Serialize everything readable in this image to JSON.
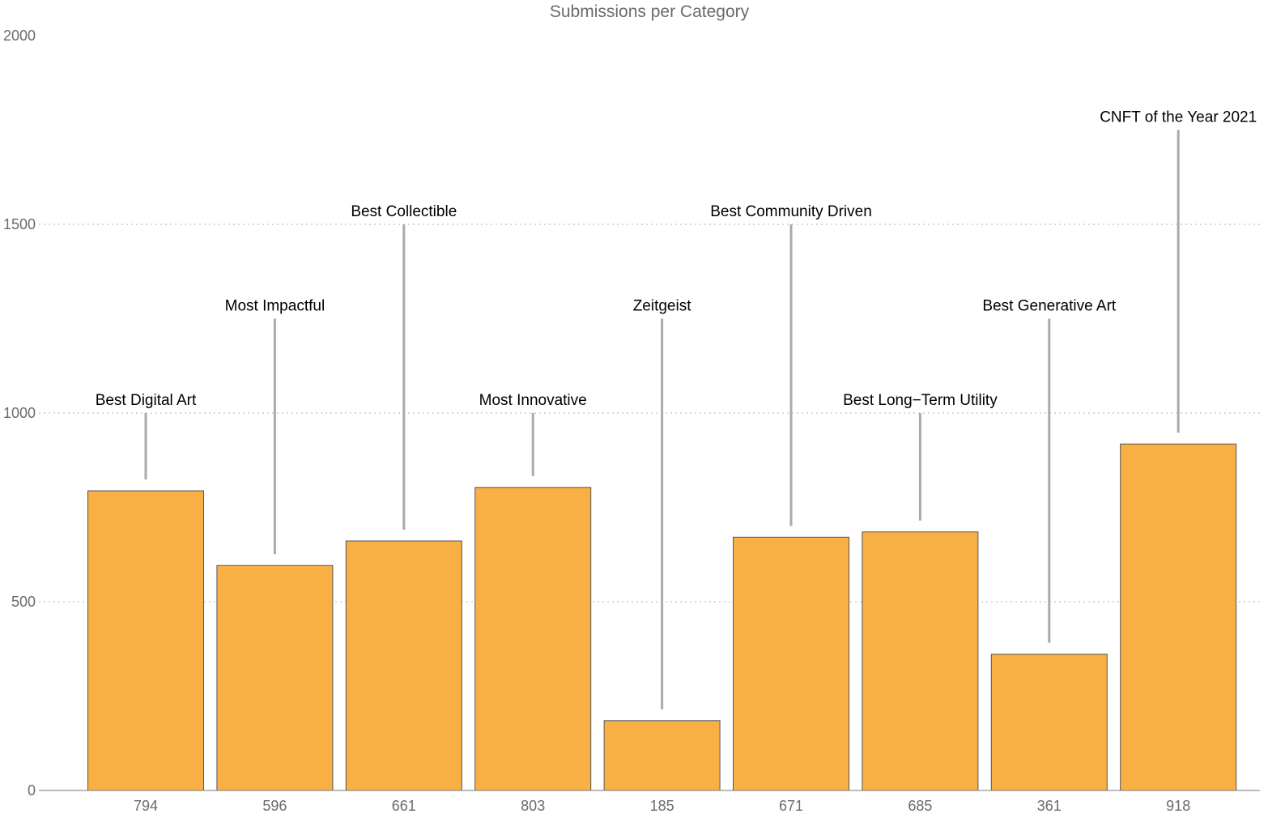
{
  "chart_data": {
    "type": "bar",
    "title": "Submissions per Category",
    "xlabel": "",
    "ylabel": "",
    "ylim": [
      0,
      2000
    ],
    "yticks": [
      0,
      500,
      1000,
      1500,
      2000
    ],
    "grid": "horizontal-dotted",
    "bar_color": "#F8AF44",
    "categories": [
      "Best Digital Art",
      "Most Impactful",
      "Best Collectible",
      "Most Innovative",
      "Zeitgeist",
      "Best Community Driven",
      "Best Long−Term Utility",
      "Best Generative Art",
      "CNFT of the Year 2021"
    ],
    "values": [
      794,
      596,
      661,
      803,
      185,
      671,
      685,
      361,
      918
    ],
    "tick_labels": [
      "794",
      "596",
      "661",
      "803",
      "185",
      "671",
      "685",
      "361",
      "918"
    ],
    "label_levels": [
      1000,
      1250,
      1500,
      1000,
      1250,
      1500,
      1000,
      1250,
      1750
    ]
  }
}
